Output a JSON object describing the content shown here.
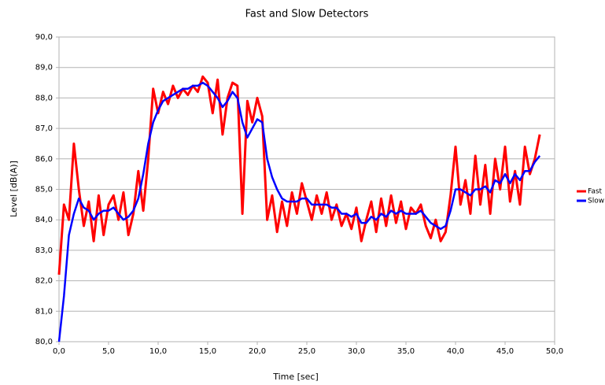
{
  "chart_data": {
    "type": "line",
    "title": "Fast and Slow Detectors",
    "x_label": "Time [sec]",
    "y_label": "Level [dB(A)]",
    "x": [
      0,
      0.5,
      1,
      1.5,
      2,
      2.5,
      3,
      3.5,
      4,
      4.5,
      5,
      5.5,
      6,
      6.5,
      7,
      7.5,
      8,
      8.5,
      9,
      9.5,
      10,
      10.5,
      11,
      11.5,
      12,
      12.5,
      13,
      13.5,
      14,
      14.5,
      15,
      15.5,
      16,
      16.5,
      17,
      17.5,
      18,
      18.5,
      19,
      19.5,
      20,
      20.5,
      21,
      21.5,
      22,
      22.5,
      23,
      23.5,
      24,
      24.5,
      25,
      25.5,
      26,
      26.5,
      27,
      27.5,
      28,
      28.5,
      29,
      29.5,
      30,
      30.5,
      31,
      31.5,
      32,
      32.5,
      33,
      33.5,
      34,
      34.5,
      35,
      35.5,
      36,
      36.5,
      37,
      37.5,
      38,
      38.5,
      39,
      39.5,
      40,
      40.5,
      41,
      41.5,
      42,
      42.5,
      43,
      43.5,
      44,
      44.5,
      45,
      45.5,
      46,
      46.5,
      47,
      47.5,
      48,
      48.5
    ],
    "series": [
      {
        "name": "Fast",
        "color": "#ff0000",
        "values": [
          82.2,
          84.5,
          84.0,
          86.5,
          85.0,
          83.8,
          84.6,
          83.3,
          84.8,
          83.5,
          84.5,
          84.8,
          84.0,
          84.9,
          83.5,
          84.2,
          85.6,
          84.3,
          86.0,
          88.3,
          87.5,
          88.2,
          87.8,
          88.4,
          88.0,
          88.3,
          88.1,
          88.4,
          88.2,
          88.7,
          88.5,
          87.5,
          88.6,
          86.8,
          88.0,
          88.5,
          88.4,
          84.2,
          87.9,
          87.2,
          88.0,
          87.4,
          84.0,
          84.8,
          83.6,
          84.6,
          83.8,
          84.9,
          84.2,
          85.2,
          84.6,
          84.0,
          84.8,
          84.2,
          84.9,
          84.0,
          84.5,
          83.8,
          84.2,
          83.7,
          84.4,
          83.3,
          84.0,
          84.6,
          83.6,
          84.7,
          83.8,
          84.8,
          83.9,
          84.6,
          83.7,
          84.4,
          84.2,
          84.5,
          83.8,
          83.4,
          84.0,
          83.3,
          83.6,
          84.8,
          86.4,
          84.5,
          85.3,
          84.2,
          86.1,
          84.5,
          85.8,
          84.2,
          86.0,
          85.0,
          86.4,
          84.6,
          85.6,
          84.5,
          86.4,
          85.5,
          86.0,
          86.8
        ]
      },
      {
        "name": "Slow",
        "color": "#0000ff",
        "values": [
          80.0,
          81.5,
          83.5,
          84.2,
          84.7,
          84.4,
          84.3,
          84.0,
          84.2,
          84.3,
          84.3,
          84.4,
          84.2,
          84.0,
          84.1,
          84.3,
          84.7,
          85.5,
          86.5,
          87.2,
          87.6,
          87.9,
          88.0,
          88.1,
          88.2,
          88.3,
          88.3,
          88.4,
          88.4,
          88.5,
          88.4,
          88.2,
          88.0,
          87.7,
          87.9,
          88.2,
          88.0,
          87.2,
          86.7,
          87.0,
          87.3,
          87.2,
          86.0,
          85.4,
          85.0,
          84.7,
          84.6,
          84.6,
          84.6,
          84.7,
          84.7,
          84.5,
          84.5,
          84.5,
          84.5,
          84.4,
          84.4,
          84.2,
          84.2,
          84.1,
          84.2,
          83.9,
          83.9,
          84.1,
          84.0,
          84.2,
          84.1,
          84.3,
          84.2,
          84.3,
          84.2,
          84.2,
          84.2,
          84.3,
          84.1,
          83.9,
          83.8,
          83.7,
          83.8,
          84.3,
          85.0,
          85.0,
          84.9,
          84.8,
          85.0,
          85.0,
          85.1,
          84.9,
          85.3,
          85.2,
          85.5,
          85.2,
          85.5,
          85.3,
          85.6,
          85.6,
          85.9,
          86.1
        ]
      }
    ],
    "xlim": [
      0,
      50
    ],
    "ylim": [
      80,
      90
    ],
    "xticks": [
      {
        "value": 0,
        "label": "0,0"
      },
      {
        "value": 5,
        "label": "5,0"
      },
      {
        "value": 10,
        "label": "10,0"
      },
      {
        "value": 15,
        "label": "15,0"
      },
      {
        "value": 20,
        "label": "20,0"
      },
      {
        "value": 25,
        "label": "25,0"
      },
      {
        "value": 30,
        "label": "30,0"
      },
      {
        "value": 35,
        "label": "35,0"
      },
      {
        "value": 40,
        "label": "40,0"
      },
      {
        "value": 45,
        "label": "45,0"
      },
      {
        "value": 50,
        "label": "50,0"
      }
    ],
    "yticks": [
      {
        "value": 80,
        "label": "80,0"
      },
      {
        "value": 81,
        "label": "81,0"
      },
      {
        "value": 82,
        "label": "82,0"
      },
      {
        "value": 83,
        "label": "83,0"
      },
      {
        "value": 84,
        "label": "84,0"
      },
      {
        "value": 85,
        "label": "85,0"
      },
      {
        "value": 86,
        "label": "86,0"
      },
      {
        "value": 87,
        "label": "87,0"
      },
      {
        "value": 88,
        "label": "88,0"
      },
      {
        "value": 89,
        "label": "89,0"
      },
      {
        "value": 90,
        "label": "90,0"
      }
    ],
    "grid": true,
    "legend": "right"
  }
}
